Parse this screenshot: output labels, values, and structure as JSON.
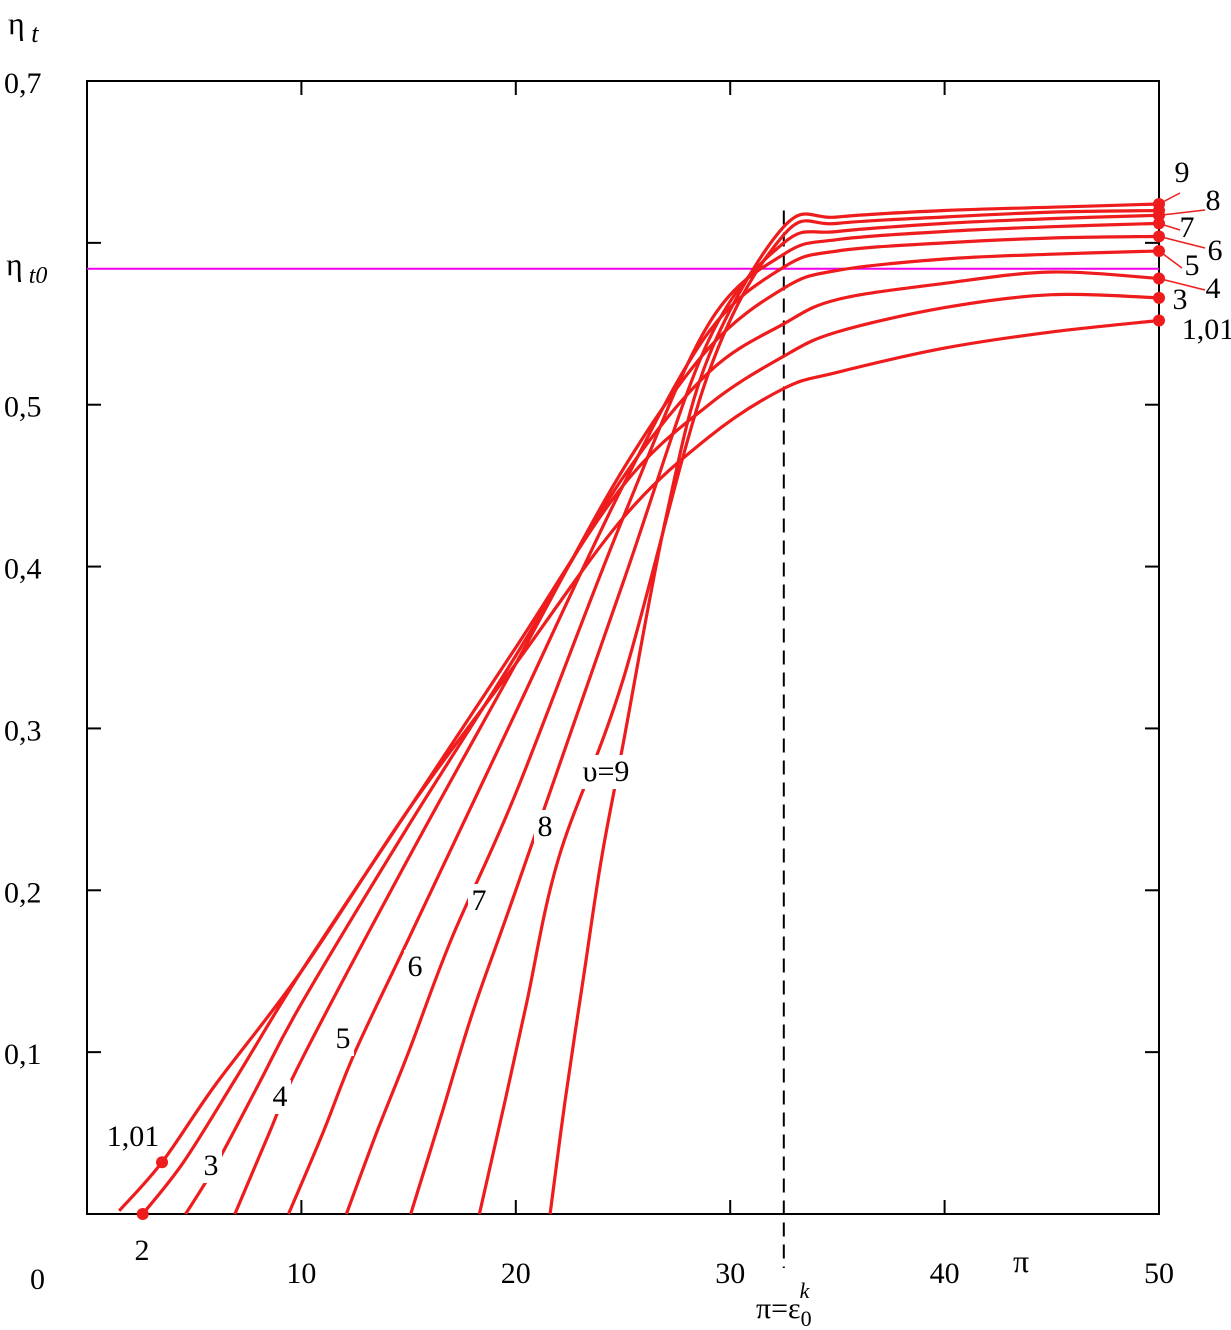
{
  "chart_data": {
    "type": "line",
    "title": "",
    "xlabel": "π",
    "ylabel": "η t",
    "ref_label": "η t0",
    "ref_value": 0.584,
    "critical_label": "π=ε",
    "critical_label_sub": "0",
    "critical_label_sup": "k",
    "critical_x": 32.5,
    "origin_label": "0",
    "xlim": [
      0,
      50
    ],
    "ylim": [
      0,
      0.7
    ],
    "x_ticks": [
      {
        "value": 10,
        "label": "10"
      },
      {
        "value": 20,
        "label": "20"
      },
      {
        "value": 30,
        "label": "30"
      },
      {
        "value": 40,
        "label": "40"
      },
      {
        "value": 50,
        "label": "50"
      }
    ],
    "y_ticks": [
      {
        "value": 0.1,
        "label": "0,1"
      },
      {
        "value": 0.2,
        "label": "0,2"
      },
      {
        "value": 0.3,
        "label": "0,3"
      },
      {
        "value": 0.4,
        "label": "0,4"
      },
      {
        "value": 0.5,
        "label": "0,5"
      },
      {
        "value": 0.7,
        "label": "0,7"
      }
    ],
    "minor_y_ticks": [
      0.6
    ],
    "colors": {
      "curve": "#ee1c1c",
      "reference": "#ee00ee",
      "axis": "#000000"
    },
    "series": [
      {
        "name": "1,01",
        "start_label": "1,01",
        "end_label": "1,01",
        "points": [
          [
            1.5,
            0.002
          ],
          [
            3.5,
            0.032
          ],
          [
            6,
            0.08
          ],
          [
            10,
            0.15
          ],
          [
            15,
            0.25
          ],
          [
            20,
            0.34
          ],
          [
            25,
            0.43
          ],
          [
            29,
            0.48
          ],
          [
            32.5,
            0.51
          ],
          [
            35,
            0.52
          ],
          [
            40,
            0.535
          ],
          [
            45,
            0.545
          ],
          [
            50,
            0.552
          ]
        ]
      },
      {
        "name": "2",
        "start_label": "2",
        "end_label": "3",
        "points": [
          [
            2.6,
            0.0
          ],
          [
            4.5,
            0.032
          ],
          [
            7,
            0.085
          ],
          [
            10,
            0.15
          ],
          [
            15,
            0.25
          ],
          [
            20,
            0.35
          ],
          [
            25,
            0.45
          ],
          [
            29,
            0.5
          ],
          [
            32.5,
            0.53
          ],
          [
            35,
            0.545
          ],
          [
            40,
            0.56
          ],
          [
            45,
            0.568
          ],
          [
            50,
            0.566
          ]
        ]
      },
      {
        "name": "3",
        "mid_label": "3",
        "end_label": "4",
        "points": [
          [
            4.6,
            0.0
          ],
          [
            6,
            0.03
          ],
          [
            8,
            0.08
          ],
          [
            10,
            0.13
          ],
          [
            15,
            0.24
          ],
          [
            20,
            0.345
          ],
          [
            25,
            0.455
          ],
          [
            29,
            0.52
          ],
          [
            32.5,
            0.55
          ],
          [
            35,
            0.565
          ],
          [
            40,
            0.575
          ],
          [
            45,
            0.582
          ],
          [
            50,
            0.578
          ]
        ]
      },
      {
        "name": "4",
        "mid_label": "4",
        "end_label": "5",
        "points": [
          [
            6.9,
            0.0
          ],
          [
            8.5,
            0.05
          ],
          [
            10,
            0.095
          ],
          [
            15,
            0.22
          ],
          [
            20,
            0.34
          ],
          [
            25,
            0.46
          ],
          [
            29,
            0.535
          ],
          [
            32.5,
            0.572
          ],
          [
            35,
            0.583
          ],
          [
            40,
            0.59
          ],
          [
            45,
            0.593
          ],
          [
            50,
            0.595
          ]
        ]
      },
      {
        "name": "5",
        "mid_label": "5",
        "end_label": "6",
        "points": [
          [
            9.4,
            0.0
          ],
          [
            11,
            0.05
          ],
          [
            12.5,
            0.1
          ],
          [
            15,
            0.17
          ],
          [
            20,
            0.31
          ],
          [
            25,
            0.45
          ],
          [
            29,
            0.545
          ],
          [
            32.5,
            0.585
          ],
          [
            35,
            0.595
          ],
          [
            40,
            0.6
          ],
          [
            45,
            0.603
          ],
          [
            50,
            0.604
          ]
        ]
      },
      {
        "name": "6",
        "mid_label": "6",
        "end_label": "7",
        "points": [
          [
            12.1,
            0.0
          ],
          [
            13.5,
            0.05
          ],
          [
            15,
            0.1
          ],
          [
            17,
            0.17
          ],
          [
            20,
            0.26
          ],
          [
            25,
            0.43
          ],
          [
            29,
            0.55
          ],
          [
            32.5,
            0.593
          ],
          [
            35,
            0.602
          ],
          [
            40,
            0.607
          ],
          [
            45,
            0.61
          ],
          [
            50,
            0.612
          ]
        ]
      },
      {
        "name": "7",
        "mid_label": "7",
        "end_label": "8",
        "points": [
          [
            15.1,
            0.0
          ],
          [
            16.5,
            0.06
          ],
          [
            18,
            0.125
          ],
          [
            20,
            0.2
          ],
          [
            25,
            0.39
          ],
          [
            29,
            0.54
          ],
          [
            32.5,
            0.6
          ],
          [
            35,
            0.607
          ],
          [
            40,
            0.612
          ],
          [
            45,
            0.615
          ],
          [
            50,
            0.617
          ]
        ]
      },
      {
        "name": "8",
        "mid_label": "8",
        "end_label": "",
        "points": [
          [
            18.3,
            0.0
          ],
          [
            19.5,
            0.07
          ],
          [
            20.5,
            0.13
          ],
          [
            22,
            0.22
          ],
          [
            25,
            0.33
          ],
          [
            29,
            0.52
          ],
          [
            32.5,
            0.605
          ],
          [
            35,
            0.612
          ],
          [
            40,
            0.616
          ],
          [
            45,
            0.619
          ],
          [
            50,
            0.62
          ]
        ]
      },
      {
        "name": "υ=9",
        "mid_label": "υ=9",
        "end_label": "9",
        "points": [
          [
            21.6,
            0.0
          ],
          [
            22.3,
            0.07
          ],
          [
            23.2,
            0.15
          ],
          [
            24,
            0.22
          ],
          [
            25,
            0.29
          ],
          [
            27,
            0.43
          ],
          [
            29,
            0.53
          ],
          [
            32.5,
            0.61
          ],
          [
            35,
            0.616
          ],
          [
            40,
            0.62
          ],
          [
            45,
            0.622
          ],
          [
            50,
            0.624
          ]
        ]
      }
    ]
  }
}
